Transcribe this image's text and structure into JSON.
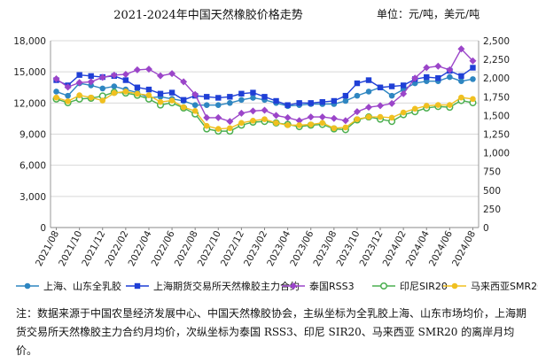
{
  "title": "2021-2024年中国天然橡胶价格走势",
  "unit": "单位：元/吨，美元/吨",
  "note": "注：数据来源于中国农垦经济发展中心、中国天然橡胶协会，主纵坐标为全乳胶上海、山东市场均价，上海期货交易所天然橡胶主力合约月均价，次纵坐标为泰国 RSS3、印尼 SIR20、马来西亚 SMR20 的离岸月均价。",
  "colors": {
    "shandong": "#2e86c1",
    "shfe": "#1f3fd6",
    "rss3": "#9b45c9",
    "sir20": "#4caf50",
    "smr20": "#f0c020",
    "grid": "#d8d8d8"
  },
  "chart_data": {
    "type": "line",
    "x": [
      "2021/08",
      "2021/09",
      "2021/10",
      "2021/11",
      "2021/12",
      "2022/01",
      "2022/02",
      "2022/03",
      "2022/04",
      "2022/05",
      "2022/06",
      "2022/07",
      "2022/08",
      "2022/09",
      "2022/10",
      "2022/11",
      "2022/12",
      "2023/01",
      "2023/02",
      "2023/03",
      "2023/04",
      "2023/05",
      "2023/06",
      "2023/07",
      "2023/08",
      "2023/09",
      "2023/10",
      "2023/11",
      "2023/12",
      "2024/01",
      "2024/02",
      "2024/03",
      "2024/04",
      "2024/05",
      "2024/06",
      "2024/07",
      "2024/08"
    ],
    "x_tick_labels": [
      "2021/08",
      "2021/10",
      "2021/12",
      "2022/02",
      "2022/04",
      "2022/06",
      "2022/08",
      "2022/10",
      "2022/12",
      "2023/02",
      "2023/04",
      "2023/06",
      "2023/08",
      "2023/10",
      "2023/12",
      "2024/02",
      "2024/04",
      "2024/06",
      "2024/08"
    ],
    "y_left": {
      "ylim": [
        0,
        18000
      ],
      "ticks": [
        "0",
        "3,000",
        "6,000",
        "9,000",
        "12,000",
        "15,000",
        "18,000"
      ]
    },
    "y_right": {
      "ylim": [
        0,
        2500
      ],
      "ticks": [
        "0",
        "250",
        "500",
        "750",
        "1,000",
        "1,250",
        "1,500",
        "1,750",
        "2,000",
        "2,250",
        "2,500"
      ]
    },
    "grid": true,
    "legend_position": "bottom",
    "series": [
      {
        "name": "上海、山东全乳胶",
        "axis": "left",
        "marker": "circle",
        "color_key": "shandong",
        "values": [
          13100,
          12700,
          13900,
          13700,
          13400,
          13600,
          13300,
          13000,
          12500,
          12600,
          12400,
          12200,
          11800,
          11800,
          11800,
          12000,
          12300,
          12500,
          12300,
          12000,
          11700,
          11800,
          11900,
          11900,
          11900,
          12200,
          12700,
          13100,
          13500,
          12700,
          13300,
          13900,
          14100,
          14100,
          14500,
          14100,
          14300
        ]
      },
      {
        "name": "上海期货交易所天然橡胶主力合约",
        "axis": "left",
        "marker": "square",
        "color_key": "shfe",
        "values": [
          14200,
          13700,
          14700,
          14600,
          14500,
          14600,
          14200,
          13500,
          13300,
          12900,
          13000,
          12300,
          12700,
          12600,
          12500,
          12600,
          12900,
          13000,
          12600,
          12200,
          11800,
          12000,
          12000,
          12100,
          12200,
          12700,
          13900,
          14200,
          13500,
          13600,
          13700,
          14300,
          14500,
          14400,
          15100,
          14600,
          15400
        ]
      },
      {
        "name": "泰国RSS3",
        "axis": "right",
        "marker": "diamond",
        "color_key": "rss3",
        "values": [
          1990,
          1880,
          1940,
          1950,
          2010,
          2040,
          2050,
          2110,
          2120,
          2030,
          2060,
          1950,
          1780,
          1470,
          1470,
          1420,
          1530,
          1560,
          1570,
          1500,
          1470,
          1430,
          1480,
          1480,
          1460,
          1430,
          1550,
          1610,
          1630,
          1660,
          1790,
          2000,
          2140,
          2160,
          2110,
          2390,
          2230
        ]
      },
      {
        "name": "印尼SIR20",
        "axis": "right",
        "marker": "ring",
        "color_key": "sir20",
        "values": [
          1720,
          1670,
          1720,
          1730,
          1760,
          1810,
          1800,
          1770,
          1720,
          1640,
          1670,
          1600,
          1520,
          1320,
          1290,
          1290,
          1370,
          1410,
          1420,
          1400,
          1380,
          1350,
          1370,
          1380,
          1320,
          1310,
          1440,
          1480,
          1450,
          1420,
          1510,
          1550,
          1600,
          1620,
          1610,
          1700,
          1670
        ]
      },
      {
        "name": "马来西亚SMR20",
        "axis": "right",
        "marker": "circle",
        "color_key": "smr20",
        "values": [
          1740,
          1690,
          1770,
          1740,
          1700,
          1800,
          1820,
          1790,
          1770,
          1680,
          1700,
          1610,
          1560,
          1360,
          1320,
          1330,
          1400,
          1430,
          1450,
          1400,
          1370,
          1370,
          1380,
          1400,
          1330,
          1340,
          1450,
          1480,
          1480,
          1470,
          1540,
          1590,
          1630,
          1640,
          1640,
          1740,
          1720
        ]
      }
    ]
  }
}
